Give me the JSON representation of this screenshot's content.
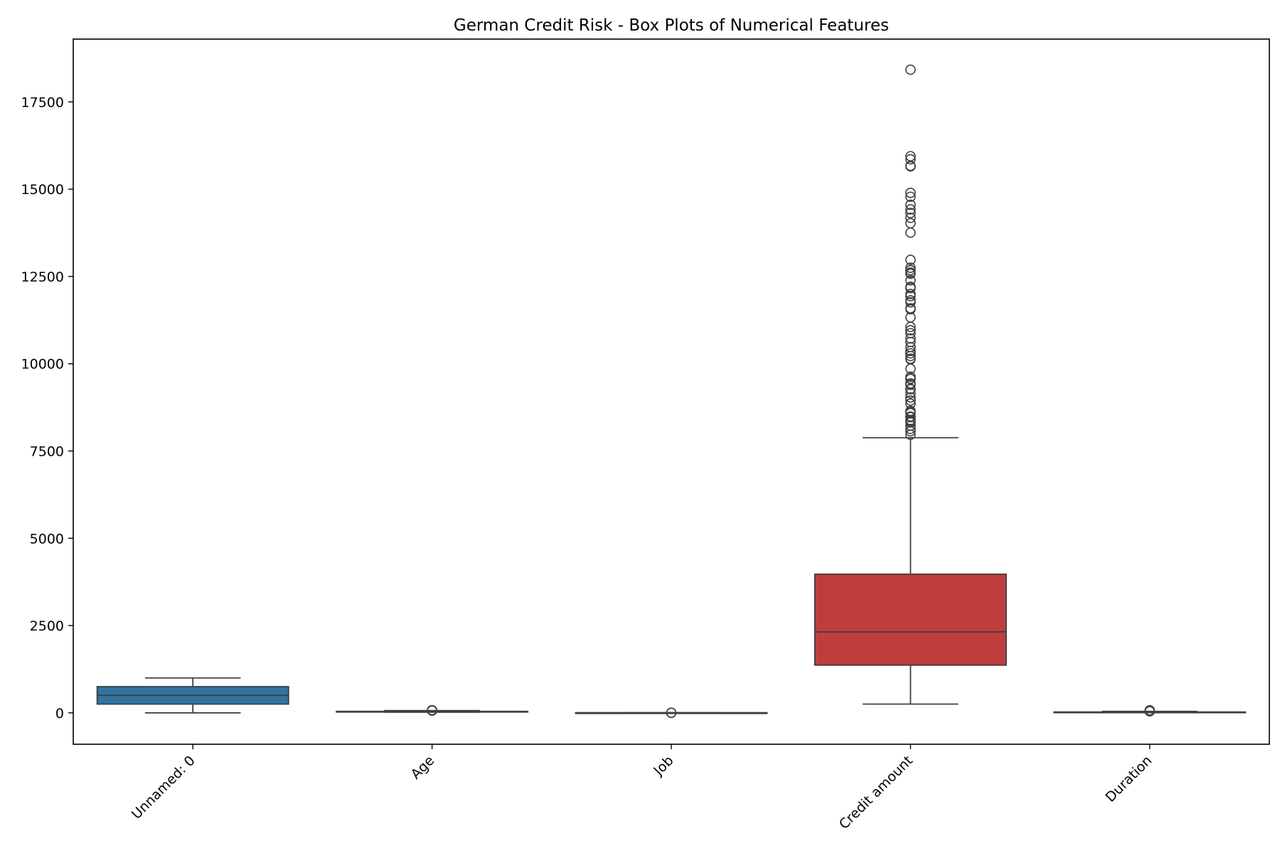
{
  "chart_data": {
    "type": "box",
    "title": "German Credit Risk - Box Plots of Numerical Features",
    "xlabel": "",
    "ylabel": "",
    "ylim": [
      -900,
      19300
    ],
    "yticks": [
      0,
      2500,
      5000,
      7500,
      10000,
      12500,
      15000,
      17500
    ],
    "grid": false,
    "categories": [
      "Unnamed: 0",
      "Age",
      "Job",
      "Credit amount",
      "Duration"
    ],
    "colors": [
      "#3274a1",
      "#e1812c",
      "#3a923a",
      "#c03d3e",
      "#9372b2"
    ],
    "boxes": [
      {
        "name": "Unnamed: 0",
        "whisker_low": 0,
        "q1": 250,
        "median": 500,
        "q3": 750,
        "whisker_high": 999,
        "outliers": []
      },
      {
        "name": "Age",
        "whisker_low": 19,
        "q1": 27,
        "median": 33,
        "q3": 42,
        "whisker_high": 64,
        "outliers": [
          65,
          66,
          67,
          68,
          70,
          74,
          75
        ]
      },
      {
        "name": "Job",
        "whisker_low": 1,
        "q1": 2,
        "median": 2,
        "q3": 2,
        "whisker_high": 2,
        "outliers": [
          0,
          3
        ]
      },
      {
        "name": "Credit amount",
        "whisker_low": 250,
        "q1": 1366,
        "median": 2320,
        "q3": 3972,
        "whisker_high": 7882,
        "outliers": [
          7966,
          8065,
          8133,
          8229,
          8318,
          8358,
          8386,
          8471,
          8487,
          8588,
          8613,
          8648,
          8858,
          8947,
          9034,
          9157,
          9271,
          9283,
          9398,
          9436,
          9566,
          9572,
          9629,
          9857,
          10127,
          10144,
          10222,
          10297,
          10366,
          10477,
          10623,
          10722,
          10875,
          10961,
          11054,
          11328,
          11560,
          11590,
          11760,
          11816,
          11938,
          11998,
          12169,
          12204,
          12389,
          12579,
          12612,
          12680,
          12749,
          12976,
          13756,
          14027,
          14179,
          14318,
          14421,
          14555,
          14782,
          14896,
          15653,
          15672,
          15857,
          15945,
          18424
        ]
      },
      {
        "name": "Duration",
        "whisker_low": 4,
        "q1": 12,
        "median": 18,
        "q3": 24,
        "whisker_high": 42,
        "outliers": [
          45,
          47,
          48,
          54,
          60,
          72
        ]
      }
    ]
  }
}
